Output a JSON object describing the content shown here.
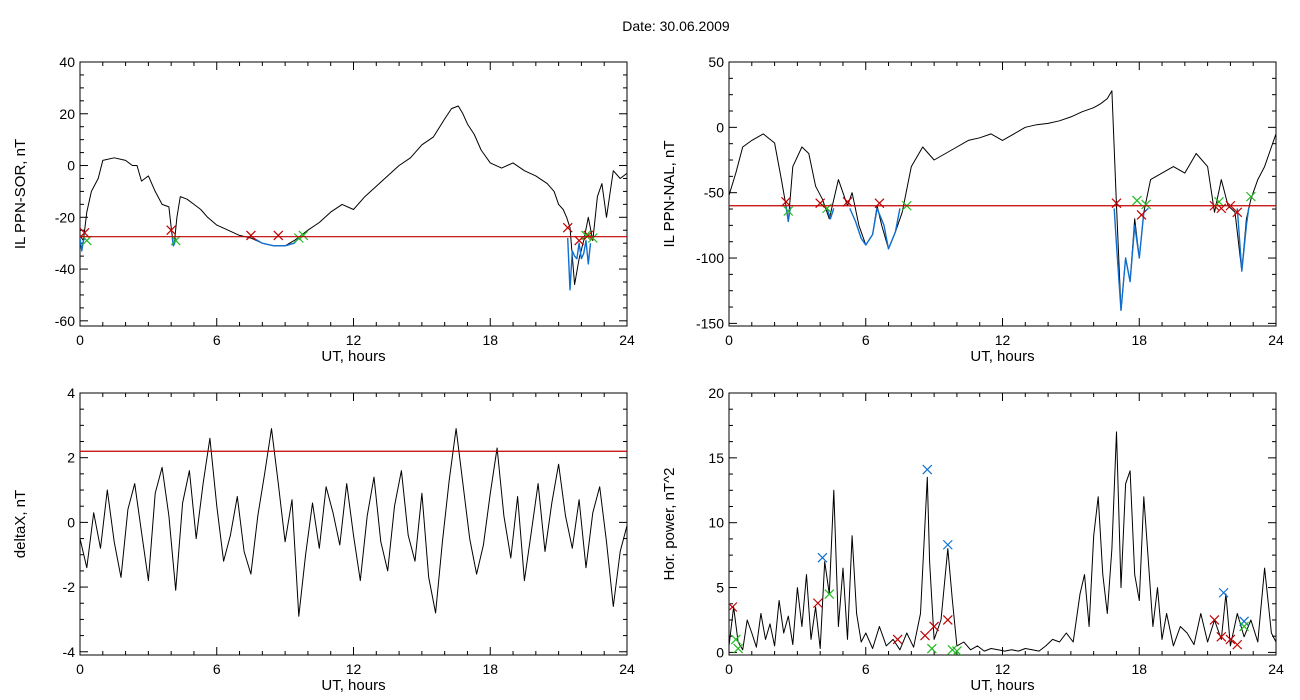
{
  "title": "Date:  30.06.2009",
  "chart_data": [
    {
      "type": "line",
      "ylabel": "IL PPN-SOR, nT",
      "xlabel": "UT, hours",
      "xlim": [
        0,
        24
      ],
      "ylim": [
        -62,
        40
      ],
      "xticks": [
        0,
        6,
        12,
        18,
        24
      ],
      "yticks": [
        -60,
        -40,
        -20,
        0,
        20,
        40
      ],
      "threshold": -27.5,
      "series": [
        {
          "role": "signal",
          "color": "#000000",
          "x": [
            0,
            0.15,
            0.3,
            0.5,
            0.8,
            1.0,
            1.5,
            2.0,
            2.3,
            2.5,
            2.7,
            3.0,
            3.3,
            3.6,
            3.9,
            4.0,
            4.1,
            4.15,
            4.25,
            4.4,
            4.7,
            5.0,
            5.3,
            5.6,
            6.0,
            6.5,
            7.0,
            7.5,
            8.0,
            8.5,
            9.0,
            9.4,
            9.7,
            10.0,
            10.5,
            11.0,
            11.5,
            12.0,
            12.5,
            13.0,
            13.5,
            14.0,
            14.5,
            15.0,
            15.5,
            16.0,
            16.3,
            16.6,
            16.8,
            17.0,
            17.3,
            17.6,
            18.0,
            18.5,
            19.0,
            19.5,
            20.0,
            20.5,
            20.8,
            21.0,
            21.2,
            21.35,
            21.5,
            21.7,
            21.9,
            22.1,
            22.3,
            22.5,
            22.7,
            22.9,
            23.1,
            23.4,
            23.7,
            24.0
          ],
          "y": [
            -27,
            -29,
            -18,
            -10,
            -5,
            2,
            3,
            2,
            0,
            0,
            -6,
            -4,
            -10,
            -15,
            -16,
            -24,
            -31,
            -29,
            -20,
            -12,
            -13,
            -15,
            -17,
            -20,
            -23,
            -25,
            -27,
            -28,
            -30,
            -31,
            -31,
            -29,
            -27,
            -25,
            -22,
            -18,
            -15,
            -17,
            -12,
            -8,
            -4,
            0,
            3,
            8,
            11,
            18,
            22,
            23,
            20,
            16,
            12,
            6,
            1,
            -1,
            1,
            -2,
            -4,
            -7,
            -10,
            -15,
            -17,
            -20,
            -24,
            -46,
            -36,
            -29,
            -20,
            -29,
            -12,
            -7,
            -20,
            -2,
            -5,
            -3
          ]
        },
        {
          "role": "below-threshold",
          "color": "#0f6fd0",
          "x": [
            21.4,
            21.5,
            21.6,
            21.7,
            21.8,
            21.9,
            22.0,
            22.1,
            22.2,
            22.3,
            22.4
          ],
          "y": [
            -28,
            -48,
            -33,
            -35,
            -36,
            -30,
            -36,
            -34,
            -29,
            -38,
            -30
          ]
        },
        {
          "role": "below-threshold",
          "color": "#0f6fd0",
          "x": [
            7.6,
            8.0,
            8.5,
            9.0,
            9.4,
            9.6
          ],
          "y": [
            -28,
            -30,
            -31,
            -31,
            -30,
            -28
          ]
        },
        {
          "role": "below-threshold",
          "color": "#0f6fd0",
          "x": [
            4.05,
            4.1,
            4.15,
            4.2
          ],
          "y": [
            -28,
            -31,
            -30,
            -28
          ]
        },
        {
          "role": "below-threshold",
          "color": "#0f6fd0",
          "x": [
            0,
            0.08,
            0.15,
            0.22
          ],
          "y": [
            -28,
            -33,
            -29,
            -28
          ]
        },
        {
          "role": "markers-red",
          "color": "#c00000",
          "x": [
            0.2,
            4.0,
            7.5,
            8.7,
            21.4,
            21.9,
            22.3
          ],
          "y": [
            -26,
            -25,
            -27,
            -27,
            -24,
            -29,
            -27
          ]
        },
        {
          "role": "markers-green",
          "color": "#22bb22",
          "x": [
            0.3,
            4.2,
            9.6,
            9.8,
            22.2,
            22.5
          ],
          "y": [
            -29,
            -29,
            -28,
            -27,
            -27,
            -28
          ]
        }
      ]
    },
    {
      "type": "line",
      "ylabel": "IL PPN-NAL, nT",
      "xlabel": "UT, hours",
      "xlim": [
        0,
        24
      ],
      "ylim": [
        -152,
        50
      ],
      "xticks": [
        0,
        6,
        12,
        18,
        24
      ],
      "yticks": [
        -150,
        -100,
        -50,
        0,
        50
      ],
      "threshold": -60,
      "series": [
        {
          "role": "signal",
          "color": "#000000",
          "x": [
            0,
            0.3,
            0.6,
            1.0,
            1.5,
            2.0,
            2.3,
            2.5,
            2.6,
            2.8,
            3.2,
            3.5,
            3.8,
            4.1,
            4.4,
            4.8,
            5.2,
            5.4,
            5.7,
            6.0,
            6.3,
            6.5,
            6.7,
            7.0,
            7.3,
            7.6,
            8.0,
            8.5,
            9.0,
            9.5,
            10.0,
            10.5,
            11.0,
            11.5,
            12.0,
            12.5,
            13.0,
            13.5,
            14.0,
            14.5,
            15.0,
            15.5,
            16.0,
            16.3,
            16.6,
            16.8,
            17.0,
            17.2,
            17.4,
            17.6,
            17.8,
            18.0,
            18.2,
            18.5,
            19.0,
            19.5,
            20.0,
            20.5,
            21.0,
            21.3,
            21.6,
            21.9,
            22.2,
            22.5,
            22.7,
            22.9,
            23.2,
            23.5,
            23.8,
            24.0
          ],
          "y": [
            -52,
            -35,
            -15,
            -10,
            -5,
            -12,
            -40,
            -60,
            -72,
            -30,
            -15,
            -20,
            -45,
            -55,
            -70,
            -40,
            -60,
            -50,
            -75,
            -90,
            -82,
            -60,
            -75,
            -93,
            -80,
            -65,
            -30,
            -15,
            -25,
            -20,
            -15,
            -10,
            -8,
            -5,
            -10,
            -5,
            0,
            2,
            3,
            5,
            8,
            12,
            15,
            18,
            22,
            28,
            -60,
            -140,
            -100,
            -118,
            -70,
            -100,
            -65,
            -40,
            -35,
            -30,
            -35,
            -20,
            -30,
            -65,
            -40,
            -60,
            -65,
            -110,
            -70,
            -55,
            -40,
            -30,
            -15,
            -5
          ]
        },
        {
          "role": "below-threshold",
          "color": "#0f6fd0",
          "x": [
            2.5,
            2.55,
            2.6,
            2.65,
            2.7
          ],
          "y": [
            -60,
            -66,
            -72,
            -66,
            -61
          ]
        },
        {
          "role": "below-threshold",
          "color": "#0f6fd0",
          "x": [
            4.3,
            4.45,
            4.6
          ],
          "y": [
            -62,
            -70,
            -62
          ]
        },
        {
          "role": "below-threshold",
          "color": "#0f6fd0",
          "x": [
            5.3,
            5.55,
            5.8,
            6.0,
            6.3,
            6.5,
            6.8,
            7.0,
            7.3,
            7.5
          ],
          "y": [
            -62,
            -72,
            -85,
            -90,
            -82,
            -62,
            -75,
            -93,
            -80,
            -62
          ]
        },
        {
          "role": "below-threshold",
          "color": "#0f6fd0",
          "x": [
            16.9,
            17.0,
            17.2,
            17.4,
            17.6,
            17.8,
            18.0,
            18.2,
            18.4
          ],
          "y": [
            -62,
            -90,
            -140,
            -100,
            -118,
            -75,
            -100,
            -65,
            -62
          ]
        },
        {
          "role": "below-threshold",
          "color": "#0f6fd0",
          "x": [
            22.3,
            22.5,
            22.7,
            22.8
          ],
          "y": [
            -62,
            -110,
            -75,
            -62
          ]
        },
        {
          "role": "markers-red",
          "color": "#c00000",
          "x": [
            2.5,
            4.0,
            5.2,
            6.6,
            17.0,
            18.1,
            21.3,
            21.6,
            22.0,
            22.3
          ],
          "y": [
            -57,
            -58,
            -57,
            -58,
            -58,
            -67,
            -60,
            -62,
            -60,
            -65
          ]
        },
        {
          "role": "markers-green",
          "color": "#22bb22",
          "x": [
            2.6,
            4.3,
            7.8,
            17.9,
            18.3,
            21.5,
            22.9
          ],
          "y": [
            -64,
            -62,
            -60,
            -56,
            -59,
            -57,
            -53
          ]
        }
      ]
    },
    {
      "type": "line",
      "ylabel": "deltaX, nT",
      "xlabel": "UT, hours",
      "xlim": [
        0,
        24
      ],
      "ylim": [
        -4.1,
        4
      ],
      "xticks": [
        0,
        6,
        12,
        18,
        24
      ],
      "yticks": [
        -4,
        -2,
        0,
        2,
        4
      ],
      "threshold": 2.2,
      "series": [
        {
          "role": "signal",
          "color": "#000000",
          "x": [
            0,
            0.3,
            0.6,
            0.9,
            1.2,
            1.5,
            1.8,
            2.1,
            2.4,
            2.7,
            3.0,
            3.3,
            3.6,
            3.9,
            4.2,
            4.5,
            4.8,
            5.1,
            5.4,
            5.7,
            6.0,
            6.3,
            6.6,
            6.9,
            7.2,
            7.5,
            7.8,
            8.1,
            8.4,
            8.7,
            9.0,
            9.3,
            9.6,
            9.9,
            10.2,
            10.5,
            10.8,
            11.1,
            11.4,
            11.7,
            12.0,
            12.3,
            12.6,
            12.9,
            13.2,
            13.5,
            13.8,
            14.1,
            14.4,
            14.7,
            15.0,
            15.3,
            15.6,
            15.9,
            16.2,
            16.5,
            16.8,
            17.1,
            17.4,
            17.7,
            18.0,
            18.3,
            18.6,
            18.9,
            19.2,
            19.5,
            19.8,
            20.1,
            20.4,
            20.7,
            21.0,
            21.3,
            21.6,
            21.9,
            22.2,
            22.5,
            22.8,
            23.1,
            23.4,
            23.7,
            24.0
          ],
          "y": [
            -0.5,
            -1.4,
            0.3,
            -0.8,
            1.0,
            -0.6,
            -1.7,
            0.4,
            1.2,
            -0.3,
            -1.8,
            0.9,
            1.7,
            0.2,
            -2.1,
            0.6,
            1.6,
            -0.5,
            1.2,
            2.6,
            0.5,
            -1.2,
            -0.4,
            0.8,
            -0.9,
            -1.6,
            0.2,
            1.5,
            2.9,
            1.2,
            -0.6,
            0.7,
            -2.9,
            -1.0,
            0.6,
            -0.8,
            1.1,
            0.3,
            -0.7,
            1.2,
            -0.4,
            -1.8,
            0.2,
            1.4,
            -0.6,
            -1.5,
            0.5,
            1.6,
            -0.4,
            -1.2,
            0.9,
            -1.7,
            -2.8,
            -0.6,
            1.3,
            2.9,
            1.2,
            -0.5,
            -1.6,
            -0.7,
            0.9,
            2.3,
            0.2,
            -1.1,
            0.8,
            -1.8,
            -0.3,
            1.2,
            -0.9,
            0.6,
            1.8,
            0.2,
            -0.8,
            0.7,
            -1.4,
            0.3,
            1.1,
            -0.6,
            -2.6,
            -0.9,
            -0.1
          ]
        }
      ]
    },
    {
      "type": "line",
      "ylabel": "Hor. power, nT^2",
      "xlabel": "UT, hours",
      "xlim": [
        0,
        24
      ],
      "ylim": [
        -0.2,
        20
      ],
      "xticks": [
        0,
        6,
        12,
        18,
        24
      ],
      "yticks": [
        0,
        5,
        10,
        15,
        20
      ],
      "series": [
        {
          "role": "signal",
          "color": "#000000",
          "x": [
            0,
            0.2,
            0.4,
            0.6,
            0.8,
            1.0,
            1.2,
            1.4,
            1.6,
            1.8,
            2.0,
            2.2,
            2.4,
            2.6,
            2.8,
            3.0,
            3.2,
            3.4,
            3.6,
            3.8,
            4.0,
            4.2,
            4.4,
            4.6,
            4.8,
            5.0,
            5.2,
            5.4,
            5.6,
            5.8,
            6.0,
            6.3,
            6.6,
            6.9,
            7.2,
            7.5,
            7.8,
            8.1,
            8.4,
            8.7,
            8.8,
            9.0,
            9.3,
            9.6,
            9.8,
            10.0,
            10.3,
            10.6,
            10.9,
            11.2,
            11.5,
            11.8,
            12.1,
            12.4,
            12.7,
            13.0,
            13.3,
            13.6,
            13.9,
            14.2,
            14.5,
            14.8,
            15.1,
            15.4,
            15.6,
            15.8,
            16.0,
            16.2,
            16.4,
            16.6,
            16.8,
            17.0,
            17.2,
            17.4,
            17.6,
            17.8,
            18.0,
            18.2,
            18.4,
            18.6,
            18.8,
            19.0,
            19.2,
            19.5,
            19.8,
            20.1,
            20.4,
            20.7,
            21.0,
            21.3,
            21.6,
            21.8,
            22.0,
            22.3,
            22.6,
            22.9,
            23.2,
            23.5,
            23.8,
            24.0
          ],
          "y": [
            0.5,
            3.5,
            0.8,
            0.2,
            2.5,
            1.5,
            0.4,
            3.0,
            1.0,
            2.2,
            0.5,
            4.0,
            1.5,
            2.8,
            0.6,
            5.0,
            2.0,
            6.0,
            1.0,
            3.5,
            0.3,
            7.0,
            4.5,
            12.5,
            2.0,
            6.5,
            1.0,
            9.0,
            3.0,
            0.8,
            1.5,
            0.3,
            2.0,
            0.5,
            1.0,
            0.2,
            1.5,
            0.4,
            3.0,
            13.5,
            7.0,
            1.0,
            2.5,
            8.0,
            4.0,
            0.5,
            0.8,
            0.2,
            0.5,
            0.1,
            0.3,
            0.2,
            0.1,
            0.2,
            0.1,
            0.3,
            0.2,
            0.1,
            0.5,
            1.0,
            0.8,
            1.5,
            0.8,
            4.5,
            6.0,
            2.0,
            9.0,
            12.0,
            6.0,
            3.0,
            8.0,
            17.0,
            5.0,
            13.0,
            14.0,
            6.0,
            4.0,
            12.0,
            7.0,
            2.0,
            5.0,
            1.0,
            3.0,
            0.5,
            2.0,
            1.5,
            0.6,
            3.0,
            0.8,
            2.5,
            1.0,
            4.5,
            0.5,
            3.0,
            1.2,
            2.5,
            0.8,
            6.5,
            1.5,
            0.8
          ]
        },
        {
          "role": "markers-red",
          "color": "#c00000",
          "x": [
            0.15,
            3.9,
            7.4,
            8.6,
            9.0,
            9.6,
            21.3,
            21.6,
            22.0,
            22.3
          ],
          "y": [
            3.5,
            3.8,
            1.0,
            1.3,
            2.0,
            2.5,
            2.5,
            1.2,
            1.0,
            0.6
          ]
        },
        {
          "role": "markers-blue",
          "color": "#0f6fd0",
          "x": [
            4.1,
            8.7,
            9.6,
            21.7,
            22.6
          ],
          "y": [
            7.3,
            14.1,
            8.3,
            4.6,
            2.4
          ]
        },
        {
          "role": "markers-green",
          "color": "#22bb22",
          "x": [
            0.3,
            0.4,
            4.4,
            8.9,
            9.8,
            10.0,
            22.6
          ],
          "y": [
            1.0,
            0.3,
            4.5,
            0.3,
            0.2,
            0.1,
            2.0
          ]
        }
      ]
    }
  ]
}
